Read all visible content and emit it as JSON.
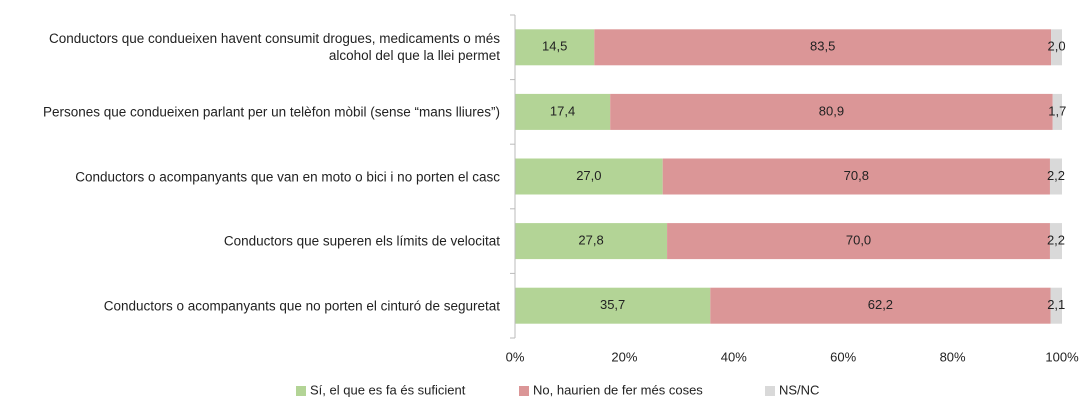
{
  "chart_data": {
    "type": "stacked_bar_horizontal",
    "categories": [
      "Conductors que condueixen havent consumit drogues, medicaments o més alcohol del que la llei permet",
      "Persones que condueixen parlant per un telèfon mòbil (sense “mans lliures”)",
      "Conductors o acompanyants que van en moto o bici i no porten el casc",
      "Conductors que superen els límits de velocitat",
      "Conductors o acompanyants que no porten el cinturó de seguretat"
    ],
    "series": [
      {
        "name": "Sí, el que es fa és suficient",
        "color": "#b3d496",
        "values": [
          14.5,
          17.4,
          27.0,
          27.8,
          35.7
        ],
        "value_labels": [
          "14,5",
          "17,4",
          "27,0",
          "27,8",
          "35,7"
        ]
      },
      {
        "name": "No, haurien de fer més coses",
        "color": "#db9697",
        "values": [
          83.5,
          80.9,
          70.8,
          70.0,
          62.2
        ],
        "value_labels": [
          "83,5",
          "80,9",
          "70,8",
          "70,0",
          "62,2"
        ]
      },
      {
        "name": "NS/NC",
        "color": "#d9d9d9",
        "values": [
          2.0,
          1.7,
          2.2,
          2.2,
          2.1
        ],
        "value_labels": [
          "2,0",
          "1,7",
          "2,2",
          "2,2",
          "2,1"
        ]
      }
    ],
    "xlim": [
      0,
      100
    ],
    "xticks": [
      {
        "value": 0,
        "label": "0%"
      },
      {
        "value": 20,
        "label": "20%"
      },
      {
        "value": 40,
        "label": "40%"
      },
      {
        "value": 60,
        "label": "60%"
      },
      {
        "value": 80,
        "label": "80%"
      },
      {
        "value": 100,
        "label": "100%"
      }
    ],
    "legend": "bottom"
  }
}
